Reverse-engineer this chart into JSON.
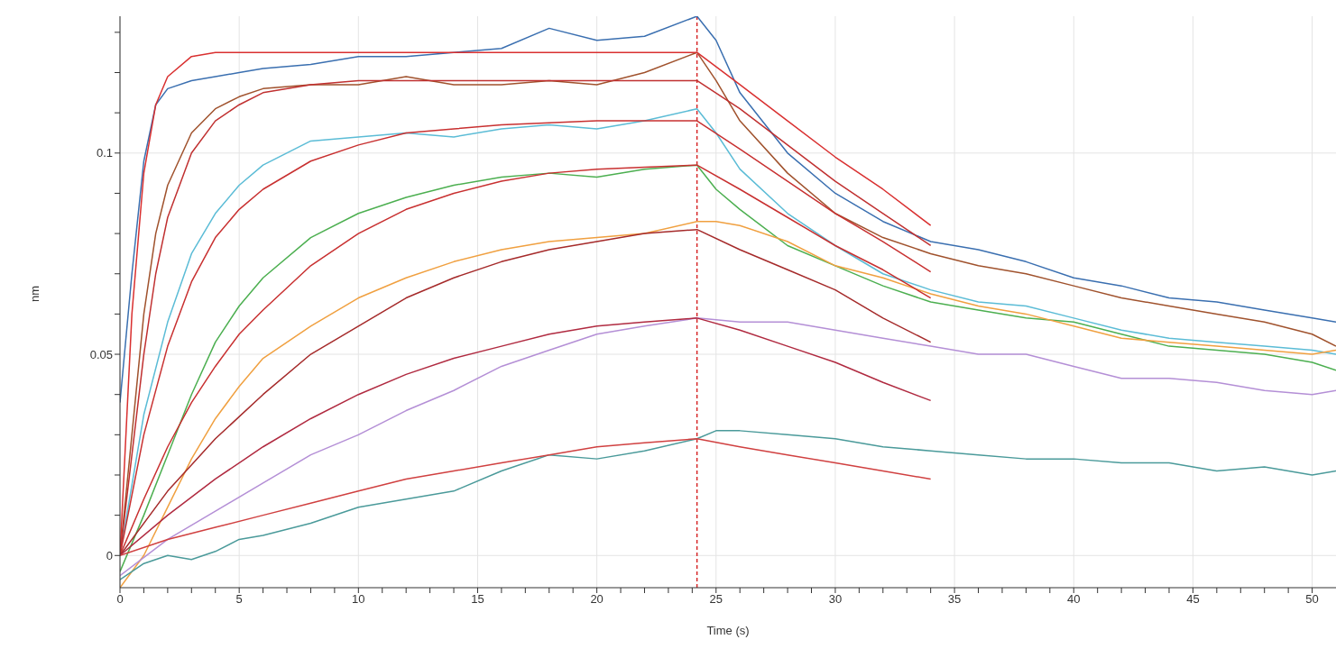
{
  "chart_data": {
    "type": "line",
    "xlabel": "Time (s)",
    "ylabel": "nm",
    "xlim": [
      0,
      51
    ],
    "ylim": [
      -0.008,
      0.134
    ],
    "xticks": [
      0,
      {
        "value": 1,
        "label": null
      },
      {
        "value": 2,
        "label": null
      },
      {
        "value": 3,
        "label": null
      },
      {
        "value": 4,
        "label": null
      },
      5,
      {
        "value": 6,
        "label": null
      },
      {
        "value": 7,
        "label": null
      },
      {
        "value": 8,
        "label": null
      },
      {
        "value": 9,
        "label": null
      },
      10,
      {
        "value": 11,
        "label": null
      },
      {
        "value": 12,
        "label": null
      },
      {
        "value": 13,
        "label": null
      },
      {
        "value": 14,
        "label": null
      },
      15,
      {
        "value": 16,
        "label": null
      },
      {
        "value": 17,
        "label": null
      },
      {
        "value": 18,
        "label": null
      },
      {
        "value": 19,
        "label": null
      },
      20,
      {
        "value": 21,
        "label": null
      },
      {
        "value": 22,
        "label": null
      },
      {
        "value": 23,
        "label": null
      },
      {
        "value": 24,
        "label": null
      },
      25,
      {
        "value": 26,
        "label": null
      },
      {
        "value": 27,
        "label": null
      },
      {
        "value": 28,
        "label": null
      },
      {
        "value": 29,
        "label": null
      },
      30,
      {
        "value": 31,
        "label": null
      },
      {
        "value": 32,
        "label": null
      },
      {
        "value": 33,
        "label": null
      },
      {
        "value": 34,
        "label": null
      },
      35,
      {
        "value": 36,
        "label": null
      },
      {
        "value": 37,
        "label": null
      },
      {
        "value": 38,
        "label": null
      },
      {
        "value": 39,
        "label": null
      },
      40,
      {
        "value": 41,
        "label": null
      },
      {
        "value": 42,
        "label": null
      },
      {
        "value": 43,
        "label": null
      },
      {
        "value": 44,
        "label": null
      },
      45,
      {
        "value": 46,
        "label": null
      },
      {
        "value": 47,
        "label": null
      },
      {
        "value": 48,
        "label": null
      },
      {
        "value": 49,
        "label": null
      },
      50
    ],
    "yticks": [
      0,
      {
        "value": 0.01,
        "label": null
      },
      {
        "value": 0.02,
        "label": null
      },
      {
        "value": 0.03,
        "label": null
      },
      {
        "value": 0.04,
        "label": null
      },
      0.05,
      {
        "value": 0.06,
        "label": null
      },
      {
        "value": 0.07,
        "label": null
      },
      {
        "value": 0.08,
        "label": null
      },
      {
        "value": 0.09,
        "label": null
      },
      0.1,
      {
        "value": 0.11,
        "label": null
      },
      {
        "value": 0.12,
        "label": null
      },
      {
        "value": 0.13,
        "label": null
      }
    ],
    "grid": true,
    "ref_lines": [
      {
        "axis": "x",
        "value": 24.2,
        "color": "#d62728",
        "line_style": "dashed"
      }
    ],
    "series": [
      {
        "color": "#3a6fb0",
        "x": [
          0,
          0.5,
          1,
          1.5,
          2,
          3,
          4,
          5,
          6,
          8,
          10,
          12,
          14,
          16,
          18,
          20,
          22,
          24.2,
          25,
          26,
          28,
          30,
          32,
          34,
          36,
          38,
          40,
          42,
          44,
          46,
          48,
          50,
          51
        ],
        "values": [
          0.038,
          0.07,
          0.098,
          0.112,
          0.116,
          0.118,
          0.119,
          0.12,
          0.121,
          0.122,
          0.124,
          0.124,
          0.125,
          0.126,
          0.131,
          0.128,
          0.129,
          0.134,
          0.128,
          0.115,
          0.1,
          0.09,
          0.083,
          0.078,
          0.076,
          0.073,
          0.069,
          0.067,
          0.064,
          0.063,
          0.061,
          0.059,
          0.058
        ]
      },
      {
        "color": "#a0522d",
        "x": [
          0,
          0.5,
          1,
          1.5,
          2,
          3,
          4,
          5,
          6,
          8,
          10,
          12,
          14,
          16,
          18,
          20,
          22,
          24.2,
          25,
          26,
          28,
          30,
          32,
          34,
          36,
          38,
          40,
          42,
          44,
          46,
          48,
          50,
          51
        ],
        "values": [
          0,
          0.03,
          0.06,
          0.08,
          0.092,
          0.105,
          0.111,
          0.114,
          0.116,
          0.117,
          0.117,
          0.119,
          0.117,
          0.117,
          0.118,
          0.117,
          0.12,
          0.125,
          0.118,
          0.108,
          0.095,
          0.085,
          0.079,
          0.075,
          0.072,
          0.07,
          0.067,
          0.064,
          0.062,
          0.06,
          0.058,
          0.055,
          0.052
        ]
      },
      {
        "color": "#5bbcd6",
        "x": [
          0,
          1,
          2,
          3,
          4,
          5,
          6,
          8,
          10,
          12,
          14,
          16,
          18,
          20,
          22,
          24.2,
          25,
          26,
          28,
          30,
          32,
          34,
          36,
          38,
          40,
          42,
          44,
          46,
          48,
          50,
          51
        ],
        "values": [
          0,
          0.035,
          0.058,
          0.075,
          0.085,
          0.092,
          0.097,
          0.103,
          0.104,
          0.105,
          0.104,
          0.106,
          0.107,
          0.106,
          0.108,
          0.111,
          0.105,
          0.096,
          0.085,
          0.077,
          0.07,
          0.066,
          0.063,
          0.062,
          0.059,
          0.056,
          0.054,
          0.053,
          0.052,
          0.051,
          0.05
        ]
      },
      {
        "color": "#4caf50",
        "x": [
          0,
          1,
          2,
          3,
          4,
          5,
          6,
          8,
          10,
          12,
          14,
          16,
          18,
          20,
          22,
          24.2,
          25,
          26,
          28,
          30,
          32,
          34,
          36,
          38,
          40,
          42,
          44,
          46,
          48,
          50,
          51
        ],
        "values": [
          -0.004,
          0.01,
          0.025,
          0.04,
          0.053,
          0.062,
          0.069,
          0.079,
          0.085,
          0.089,
          0.092,
          0.094,
          0.095,
          0.094,
          0.096,
          0.097,
          0.091,
          0.086,
          0.077,
          0.072,
          0.067,
          0.063,
          0.061,
          0.059,
          0.058,
          0.055,
          0.052,
          0.051,
          0.05,
          0.048,
          0.046
        ]
      },
      {
        "color": "#f0a040",
        "x": [
          0,
          1,
          2,
          3,
          4,
          5,
          6,
          8,
          10,
          12,
          14,
          16,
          18,
          20,
          22,
          24.2,
          25,
          26,
          28,
          30,
          32,
          34,
          36,
          38,
          40,
          42,
          44,
          46,
          48,
          50,
          51
        ],
        "values": [
          -0.008,
          0,
          0.012,
          0.024,
          0.034,
          0.042,
          0.049,
          0.057,
          0.064,
          0.069,
          0.073,
          0.076,
          0.078,
          0.079,
          0.08,
          0.083,
          0.083,
          0.082,
          0.078,
          0.072,
          0.069,
          0.065,
          0.062,
          0.06,
          0.057,
          0.054,
          0.053,
          0.052,
          0.051,
          0.05,
          0.051
        ]
      },
      {
        "color": "#b48fd6",
        "x": [
          0,
          2,
          4,
          6,
          8,
          10,
          12,
          14,
          16,
          18,
          20,
          22,
          24.2,
          26,
          28,
          30,
          32,
          34,
          36,
          38,
          40,
          42,
          44,
          46,
          48,
          50,
          51
        ],
        "values": [
          -0.005,
          0.004,
          0.011,
          0.018,
          0.025,
          0.03,
          0.036,
          0.041,
          0.047,
          0.051,
          0.055,
          0.057,
          0.059,
          0.058,
          0.058,
          0.056,
          0.054,
          0.052,
          0.05,
          0.05,
          0.047,
          0.044,
          0.044,
          0.043,
          0.041,
          0.04,
          0.041
        ]
      },
      {
        "color": "#4a9a9a",
        "x": [
          0,
          1,
          2,
          3,
          4,
          5,
          6,
          8,
          10,
          12,
          14,
          16,
          18,
          20,
          22,
          24.2,
          25,
          26,
          28,
          30,
          32,
          34,
          36,
          38,
          40,
          42,
          44,
          46,
          48,
          50,
          51
        ],
        "values": [
          -0.006,
          -0.002,
          0,
          -0.001,
          0.001,
          0.004,
          0.005,
          0.008,
          0.012,
          0.014,
          0.016,
          0.021,
          0.025,
          0.024,
          0.026,
          0.029,
          0.031,
          0.031,
          0.03,
          0.029,
          0.027,
          0.026,
          0.025,
          0.024,
          0.024,
          0.023,
          0.023,
          0.021,
          0.022,
          0.02,
          0.021
        ]
      },
      {
        "color": "#d93030",
        "x": [
          0,
          0.5,
          1,
          1.5,
          2,
          3,
          4,
          5,
          24.2,
          26,
          28,
          30,
          32,
          34
        ],
        "values": [
          0,
          0.06,
          0.095,
          0.112,
          0.119,
          0.124,
          0.125,
          0.125,
          0.125,
          0.117,
          0.108,
          0.099,
          0.091,
          0.082
        ]
      },
      {
        "color": "#c03030",
        "x": [
          0,
          0.5,
          1,
          1.5,
          2,
          3,
          4,
          5,
          6,
          8,
          10,
          12,
          24.2,
          26,
          28,
          30,
          32,
          34
        ],
        "values": [
          0,
          0.025,
          0.05,
          0.07,
          0.084,
          0.1,
          0.108,
          0.112,
          0.115,
          0.117,
          0.118,
          0.118,
          0.118,
          0.111,
          0.102,
          0.093,
          0.085,
          0.077
        ]
      },
      {
        "color": "#c83030",
        "x": [
          0,
          1,
          2,
          3,
          4,
          5,
          6,
          8,
          10,
          12,
          14,
          16,
          20,
          24.2,
          26,
          28,
          30,
          32,
          34
        ],
        "values": [
          0,
          0.03,
          0.052,
          0.068,
          0.079,
          0.086,
          0.091,
          0.098,
          0.102,
          0.105,
          0.106,
          0.107,
          0.108,
          0.108,
          0.101,
          0.093,
          0.085,
          0.078,
          0.0705
        ]
      },
      {
        "color": "#c83030",
        "x": [
          0,
          1,
          2,
          3,
          4,
          5,
          6,
          8,
          10,
          12,
          14,
          16,
          18,
          20,
          22,
          24.2,
          26,
          28,
          30,
          32,
          34
        ],
        "values": [
          0,
          0.014,
          0.027,
          0.038,
          0.047,
          0.055,
          0.061,
          0.072,
          0.08,
          0.086,
          0.09,
          0.093,
          0.095,
          0.096,
          0.0965,
          0.097,
          0.091,
          0.084,
          0.077,
          0.071,
          0.064
        ]
      },
      {
        "color": "#a52a2a",
        "x": [
          0,
          2,
          4,
          6,
          8,
          10,
          12,
          14,
          16,
          18,
          20,
          22,
          24.2,
          26,
          28,
          30,
          32,
          34
        ],
        "values": [
          0,
          0.016,
          0.029,
          0.04,
          0.05,
          0.057,
          0.064,
          0.069,
          0.073,
          0.076,
          0.078,
          0.08,
          0.081,
          0.076,
          0.071,
          0.066,
          0.059,
          0.053
        ]
      },
      {
        "color": "#b02a40",
        "x": [
          0,
          2,
          4,
          6,
          8,
          10,
          12,
          14,
          16,
          18,
          20,
          22,
          24.2,
          26,
          28,
          30,
          32,
          34
        ],
        "values": [
          0,
          0.01,
          0.019,
          0.027,
          0.034,
          0.04,
          0.045,
          0.049,
          0.052,
          0.055,
          0.057,
          0.058,
          0.059,
          0.056,
          0.052,
          0.048,
          0.043,
          0.0385
        ]
      },
      {
        "color": "#d04040",
        "x": [
          0,
          2,
          4,
          6,
          8,
          10,
          12,
          14,
          16,
          18,
          20,
          22,
          24.2,
          26,
          28,
          30,
          32,
          34
        ],
        "values": [
          0,
          0.004,
          0.007,
          0.01,
          0.013,
          0.016,
          0.019,
          0.021,
          0.023,
          0.025,
          0.027,
          0.028,
          0.029,
          0.027,
          0.025,
          0.023,
          0.021,
          0.019
        ]
      }
    ]
  }
}
